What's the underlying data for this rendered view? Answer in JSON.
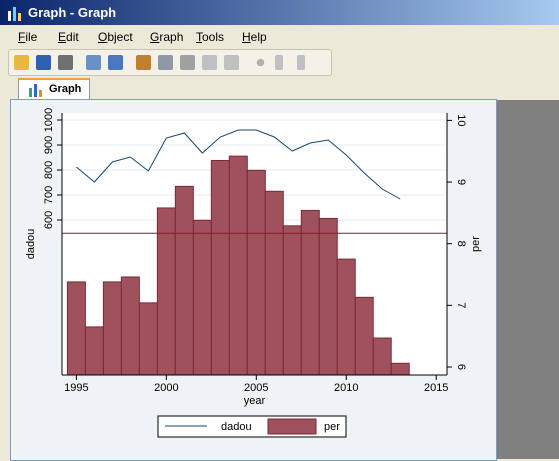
{
  "window": {
    "title": "Graph - Graph",
    "menu": [
      "File",
      "Edit",
      "Object",
      "Graph",
      "Tools",
      "Help"
    ],
    "tab": "Graph"
  },
  "chart_data": {
    "type": "bar-line",
    "x_label": "year",
    "y_label": "dadou",
    "y2_label": "per",
    "categories": [
      1995,
      1996,
      1997,
      1998,
      1999,
      2000,
      2001,
      2002,
      2003,
      2004,
      2005,
      2006,
      2007,
      2008,
      2009,
      2010,
      2011,
      2012,
      2013
    ],
    "series": [
      {
        "name": "dadou",
        "type": "line",
        "color": "#1a476f",
        "axis": "y",
        "values": [
          812,
          752,
          832,
          852,
          796,
          928,
          948,
          868,
          932,
          960,
          960,
          932,
          876,
          908,
          920,
          860,
          788,
          724,
          684
        ]
      },
      {
        "name": "per",
        "type": "bar",
        "color": "#a0525c",
        "axis": "y2",
        "values": [
          7.38,
          6.65,
          7.38,
          7.46,
          7.04,
          8.58,
          8.93,
          8.38,
          9.35,
          9.42,
          9.19,
          8.85,
          8.29,
          8.54,
          8.41,
          7.75,
          7.13,
          6.47,
          6.06
        ]
      }
    ],
    "reference_line": {
      "value": 8.17,
      "axis": "y2",
      "color": "#8b1a2b"
    },
    "xlim": [
      1994.2,
      2015.6
    ],
    "xticks": [
      1995,
      2000,
      2005,
      2010,
      2015
    ],
    "ylim": [
      -20,
      1028
    ],
    "yticks": [
      600,
      700,
      800,
      900,
      1000
    ],
    "y2lim": [
      5.87,
      10.12
    ],
    "y2ticks": [
      6,
      7,
      8,
      9,
      10
    ],
    "grid": true
  }
}
